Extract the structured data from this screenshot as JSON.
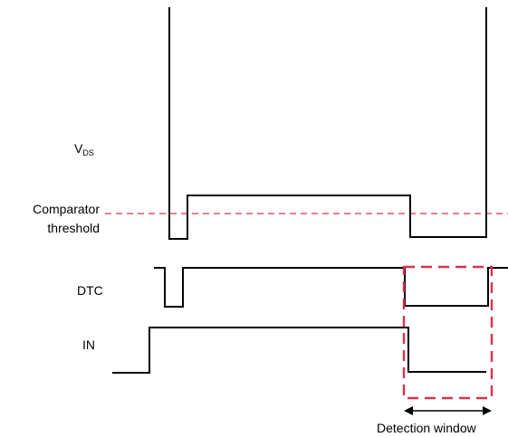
{
  "diagram": {
    "signals": {
      "vds": {
        "label_main": "V",
        "label_sub": "DS"
      },
      "threshold": {
        "label_line1": "Comparator",
        "label_line2": "threshold"
      },
      "dtc": {
        "label": "DTC"
      },
      "in": {
        "label": "IN"
      }
    },
    "detection_window": {
      "label": "Detection window"
    },
    "colors": {
      "waveform": "#000000",
      "threshold_line": "#d6334f",
      "detection_window": "#d6334f",
      "background": "#ffffff"
    }
  }
}
